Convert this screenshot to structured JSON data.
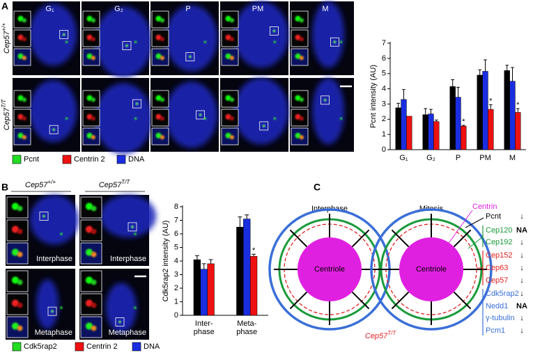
{
  "panel_a": {
    "label": "A",
    "columns": [
      "G₁",
      "G₂",
      "P",
      "PM",
      "M"
    ],
    "rows": [
      {
        "gene": "Cep57",
        "genotype": "+/+"
      },
      {
        "gene": "Cep57",
        "genotype": "T/T"
      }
    ],
    "legend": [
      {
        "name": "Pcnt",
        "color": "#22dd22"
      },
      {
        "name": "Centrin 2",
        "color": "#ee1111"
      },
      {
        "name": "DNA",
        "color": "#1a2ee0"
      }
    ]
  },
  "panel_b": {
    "label": "B",
    "columns": [
      {
        "gene": "Cep57",
        "genotype": "+/+"
      },
      {
        "gene": "Cep57",
        "genotype": "T/T"
      }
    ],
    "stages": [
      "Interphase",
      "Metaphase"
    ],
    "legend": [
      {
        "name": "Cdk5rap2",
        "color": "#22dd22"
      },
      {
        "name": "Centrin 2",
        "color": "#ee1111"
      },
      {
        "name": "DNA",
        "color": "#1a2ee0"
      }
    ]
  },
  "panel_c": {
    "label": "C",
    "diagrams": [
      {
        "title": "Interphase",
        "center": "Centriole"
      },
      {
        "title": "Mitosis",
        "center": "Centriole"
      }
    ],
    "genotype": {
      "gene": "Cep57",
      "genotype": "T/T"
    },
    "proteins": [
      {
        "name": "Centrin",
        "color": "#e020e0"
      },
      {
        "name": "Pcnt",
        "color": "#000000",
        "effect": "↓"
      },
      {
        "name": "Cep120",
        "color": "#1a9a3a",
        "effect": "NA"
      },
      {
        "name": "Cep192",
        "color": "#1a9a3a",
        "effect": "↓"
      },
      {
        "name": "Cep152",
        "color": "#e02020",
        "effect": "↓"
      },
      {
        "name": "Cep63",
        "color": "#e02020",
        "effect": "↓"
      },
      {
        "name": "Cep57",
        "color": "#e02020",
        "effect": "↓"
      },
      {
        "name": "Cdk5rap2",
        "color": "#3a6fd8",
        "effect": "↓"
      },
      {
        "name": "Nedd1",
        "color": "#3a6fd8",
        "effect": "NA"
      },
      {
        "name": "γ-tubulin",
        "color": "#3a6fd8",
        "effect": "↓"
      },
      {
        "name": "Pcm1",
        "color": "#3a6fd8",
        "effect": "↓"
      }
    ]
  },
  "chart_data": [
    {
      "type": "bar",
      "ylabel": "Pcnt intensity (AU)",
      "categories": [
        "G₁",
        "G₂",
        "P",
        "PM",
        "M"
      ],
      "series": [
        {
          "color": "#000000",
          "values": [
            2.75,
            2.3,
            4.15,
            4.9,
            5.2
          ],
          "errors": [
            0.3,
            0.4,
            0.45,
            0.35,
            0.35
          ]
        },
        {
          "color": "#1a2ee0",
          "values": [
            3.3,
            2.35,
            3.45,
            5.15,
            4.5
          ],
          "errors": [
            0.65,
            0.3,
            0.65,
            0.75,
            0.9
          ]
        },
        {
          "color": "#ee1111",
          "values": [
            2.2,
            1.85,
            1.55,
            2.65,
            2.45
          ],
          "errors": [
            null,
            0.1,
            0.05,
            0.3,
            0.25
          ],
          "marks": [
            null,
            null,
            "*",
            "*",
            "*"
          ]
        }
      ],
      "ylim": [
        0,
        7
      ],
      "yticks": [
        0,
        1,
        2,
        3,
        4,
        5,
        6,
        7
      ]
    },
    {
      "type": "bar",
      "ylabel": "Cdk5rap2 intensity (AU)",
      "categories": [
        [
          "Inter-",
          "phase"
        ],
        [
          "Meta-",
          "phase"
        ]
      ],
      "series": [
        {
          "color": "#000000",
          "values": [
            4.1,
            6.5
          ],
          "errors": [
            0.3,
            0.75
          ]
        },
        {
          "color": "#1a2ee0",
          "values": [
            3.4,
            7.1
          ],
          "errors": [
            0.4,
            0.3
          ]
        },
        {
          "color": "#ee1111",
          "values": [
            3.8,
            4.35
          ],
          "errors": [
            0.3,
            0.15
          ],
          "marks": [
            null,
            "*"
          ]
        }
      ],
      "ylim": [
        0,
        8
      ],
      "yticks": [
        0,
        1,
        2,
        3,
        4,
        5,
        6,
        7,
        8
      ]
    }
  ]
}
